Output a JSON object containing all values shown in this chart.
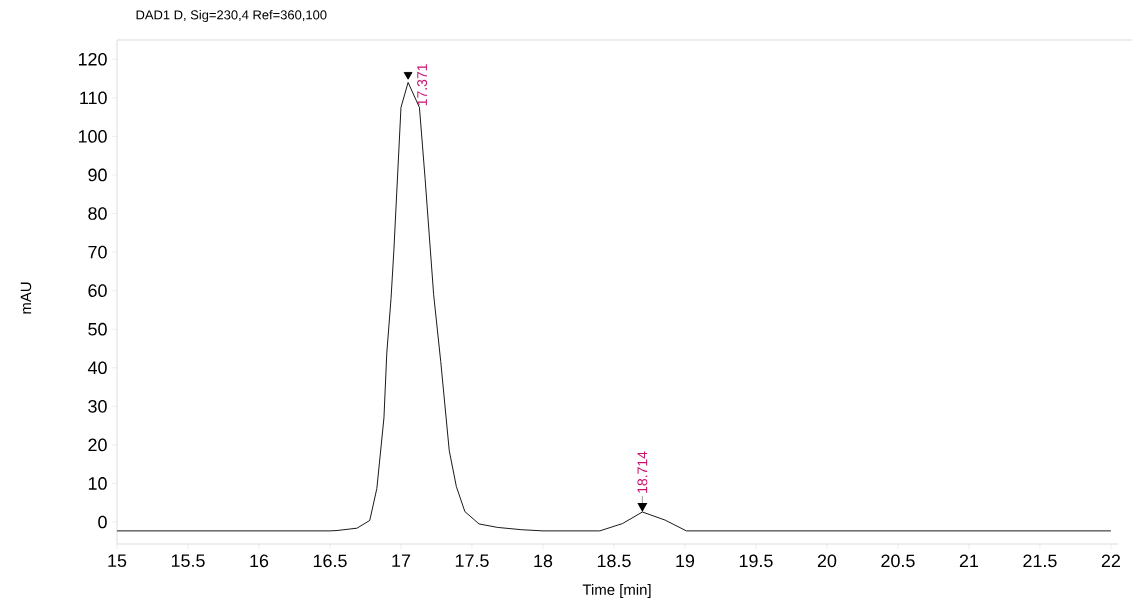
{
  "chart_data": {
    "type": "line",
    "title": "DAD1 D, Sig=230,4 Ref=360,100",
    "xlabel": "Time [min]",
    "ylabel": "mAU",
    "x": [
      15,
      15.5,
      16,
      16.5,
      16.55,
      16.69,
      16.78,
      16.83,
      16.88,
      16.9,
      16.93,
      16.95,
      17.0,
      17.05,
      17.13,
      17.17,
      17.23,
      17.28,
      17.34,
      17.39,
      17.45,
      17.55,
      17.68,
      17.85,
      18.0,
      18.4,
      18.56,
      18.7,
      18.86,
      19.01,
      19.5,
      20,
      21,
      22
    ],
    "series": [
      {
        "color": "#000000",
        "values": [
          -2.3,
          -2.3,
          -2.3,
          -2.3,
          -2.2,
          -1.6,
          0.4,
          8.7,
          27,
          43.8,
          58,
          70.5,
          107.5,
          114,
          107.5,
          89,
          59,
          41.6,
          18.5,
          9.2,
          2.7,
          -0.5,
          -1.4,
          -2.0,
          -2.3,
          -2.3,
          -0.4,
          2.6,
          0.5,
          -2.3,
          -2.3,
          -2.3,
          -2.3,
          -2.3
        ]
      },
      {
        "type": "scatter",
        "marker": "triangle",
        "color": "#000000",
        "x": [
          17.05
        ],
        "values": [
          116
        ]
      }
    ],
    "xlim": [
      15,
      22.05
    ],
    "ylim": [
      -5.7,
      125
    ],
    "xticks": [
      15,
      15.5,
      16,
      16.5,
      17,
      17.5,
      18,
      18.5,
      19,
      19.5,
      20,
      20.5,
      21,
      21.5,
      22
    ],
    "yticks": [
      0,
      10,
      20,
      30,
      40,
      50,
      60,
      70,
      80,
      90,
      100,
      110,
      120
    ],
    "annotations": [
      {
        "text": "17.371",
        "x": 17.05,
        "y": 114
      },
      {
        "text": "18.714",
        "x": 18.7,
        "y": 2.6
      }
    ]
  }
}
